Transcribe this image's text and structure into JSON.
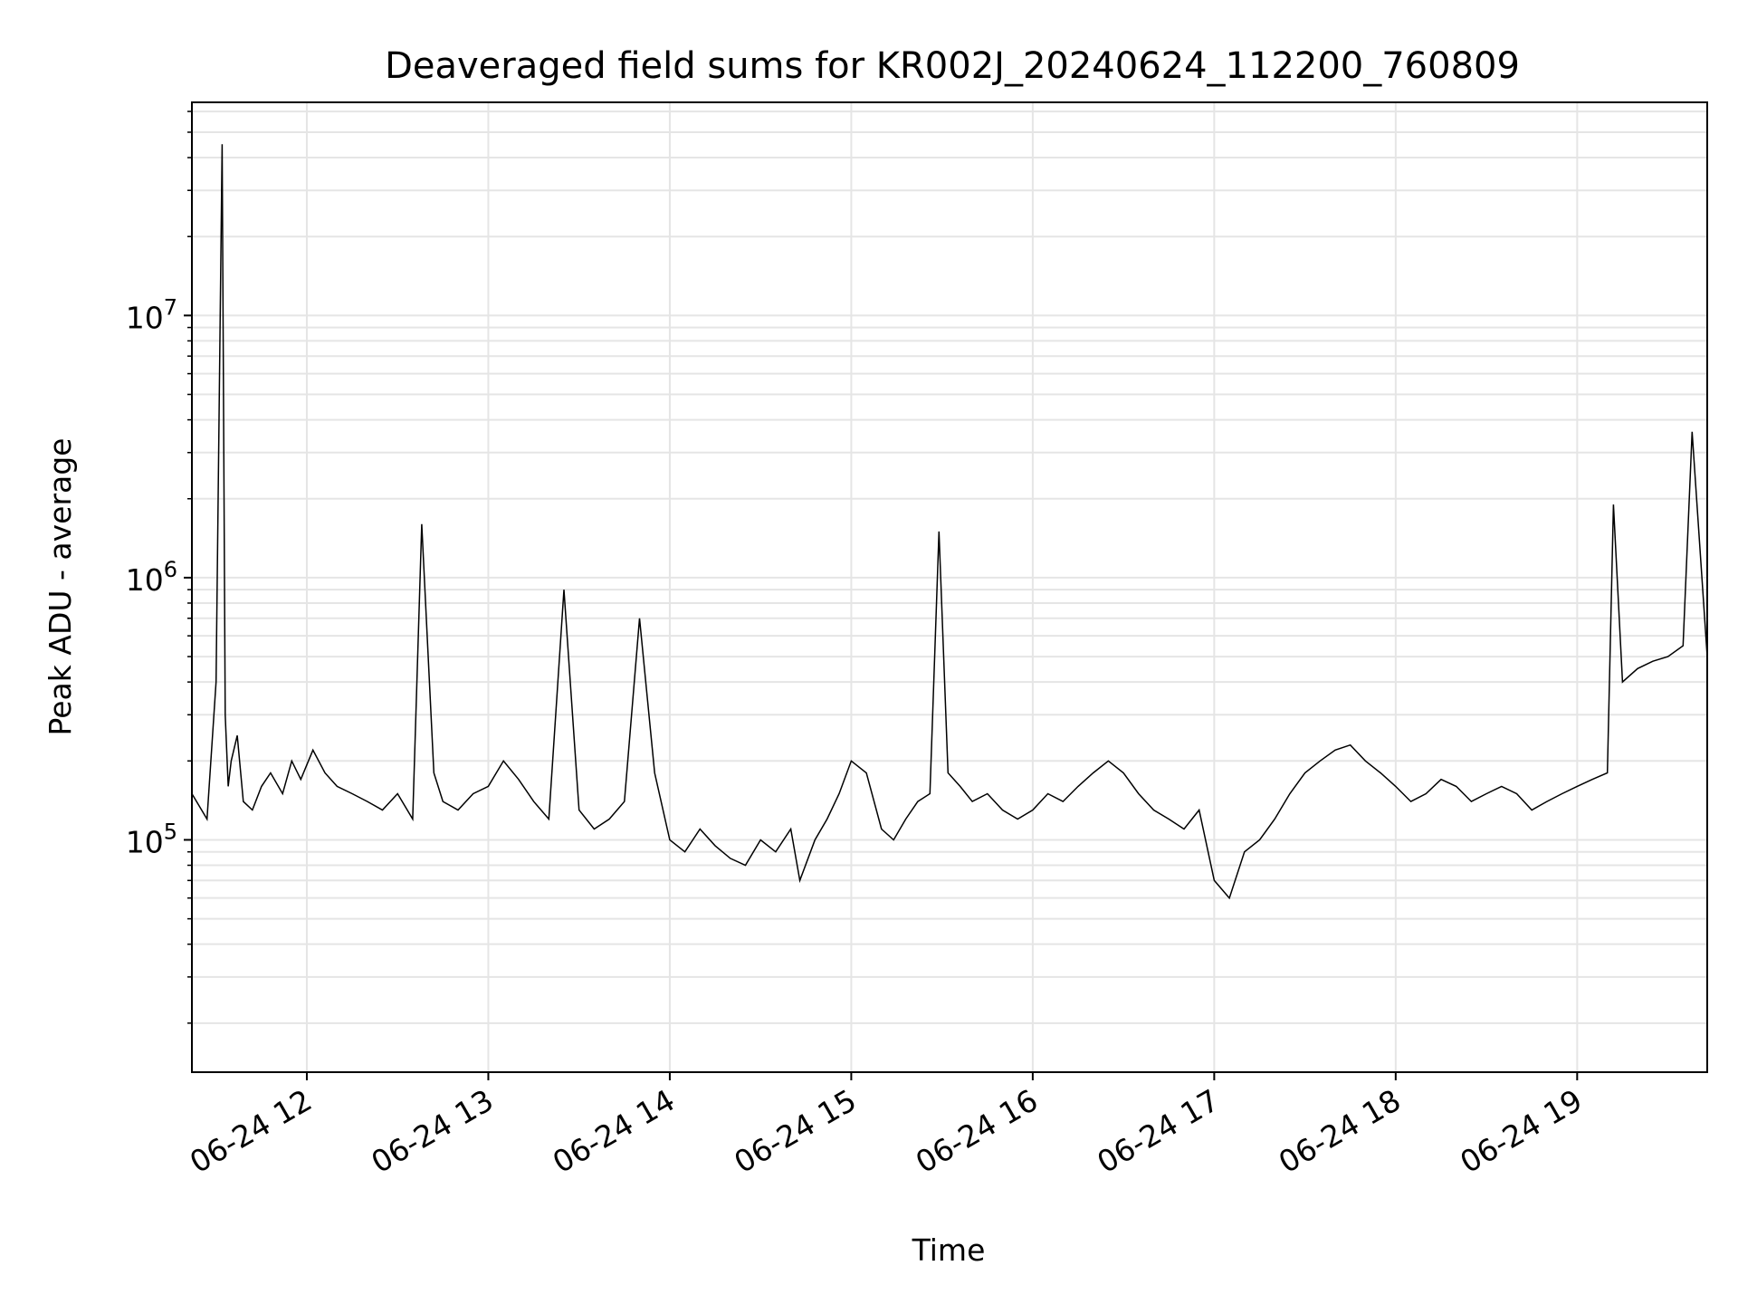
{
  "chart_data": {
    "type": "line",
    "title": "Deaveraged field sums for KR002J_20240624_112200_760809",
    "xlabel": "Time",
    "ylabel": "Peak ADU - average",
    "y_scale": "log",
    "ylim": [
      13000,
      65000000
    ],
    "xlim": [
      "2024-06-24 11:22",
      "2024-06-24 19:43"
    ],
    "x_ticks": [
      {
        "t": "2024-06-24 12:00",
        "label": "06-24 12"
      },
      {
        "t": "2024-06-24 13:00",
        "label": "06-24 13"
      },
      {
        "t": "2024-06-24 14:00",
        "label": "06-24 14"
      },
      {
        "t": "2024-06-24 15:00",
        "label": "06-24 15"
      },
      {
        "t": "2024-06-24 16:00",
        "label": "06-24 16"
      },
      {
        "t": "2024-06-24 17:00",
        "label": "06-24 17"
      },
      {
        "t": "2024-06-24 18:00",
        "label": "06-24 18"
      },
      {
        "t": "2024-06-24 19:00",
        "label": "06-24 19"
      }
    ],
    "y_ticks": [
      {
        "value": 100000,
        "base": "10",
        "exp": "5"
      },
      {
        "value": 1000000,
        "base": "10",
        "exp": "6"
      },
      {
        "value": 10000000,
        "base": "10",
        "exp": "7"
      }
    ],
    "grid": true,
    "line_color": "#000000",
    "grid_color": "#e5e5e5",
    "series": [
      {
        "x": [
          "2024-06-24 11:22",
          "2024-06-24 11:27",
          "2024-06-24 11:30",
          "2024-06-24 11:32",
          "2024-06-24 11:33",
          "2024-06-24 11:34",
          "2024-06-24 11:35",
          "2024-06-24 11:37",
          "2024-06-24 11:39",
          "2024-06-24 11:42",
          "2024-06-24 11:45",
          "2024-06-24 11:48",
          "2024-06-24 11:52",
          "2024-06-24 11:55",
          "2024-06-24 11:58",
          "2024-06-24 12:02",
          "2024-06-24 12:06",
          "2024-06-24 12:10",
          "2024-06-24 12:15",
          "2024-06-24 12:20",
          "2024-06-24 12:25",
          "2024-06-24 12:30",
          "2024-06-24 12:35",
          "2024-06-24 12:38",
          "2024-06-24 12:42",
          "2024-06-24 12:45",
          "2024-06-24 12:50",
          "2024-06-24 12:55",
          "2024-06-24 13:00",
          "2024-06-24 13:05",
          "2024-06-24 13:10",
          "2024-06-24 13:15",
          "2024-06-24 13:20",
          "2024-06-24 13:25",
          "2024-06-24 13:30",
          "2024-06-24 13:35",
          "2024-06-24 13:40",
          "2024-06-24 13:45",
          "2024-06-24 13:50",
          "2024-06-24 13:55",
          "2024-06-24 14:00",
          "2024-06-24 14:05",
          "2024-06-24 14:10",
          "2024-06-24 14:15",
          "2024-06-24 14:20",
          "2024-06-24 14:25",
          "2024-06-24 14:30",
          "2024-06-24 14:35",
          "2024-06-24 14:40",
          "2024-06-24 14:43",
          "2024-06-24 14:48",
          "2024-06-24 14:52",
          "2024-06-24 14:56",
          "2024-06-24 15:00",
          "2024-06-24 15:05",
          "2024-06-24 15:10",
          "2024-06-24 15:14",
          "2024-06-24 15:18",
          "2024-06-24 15:22",
          "2024-06-24 15:26",
          "2024-06-24 15:29",
          "2024-06-24 15:32",
          "2024-06-24 15:36",
          "2024-06-24 15:40",
          "2024-06-24 15:45",
          "2024-06-24 15:50",
          "2024-06-24 15:55",
          "2024-06-24 16:00",
          "2024-06-24 16:05",
          "2024-06-24 16:10",
          "2024-06-24 16:15",
          "2024-06-24 16:20",
          "2024-06-24 16:25",
          "2024-06-24 16:30",
          "2024-06-24 16:35",
          "2024-06-24 16:40",
          "2024-06-24 16:45",
          "2024-06-24 16:50",
          "2024-06-24 16:55",
          "2024-06-24 17:00",
          "2024-06-24 17:05",
          "2024-06-24 17:10",
          "2024-06-24 17:15",
          "2024-06-24 17:20",
          "2024-06-24 17:25",
          "2024-06-24 17:30",
          "2024-06-24 17:35",
          "2024-06-24 17:40",
          "2024-06-24 17:45",
          "2024-06-24 17:50",
          "2024-06-24 17:55",
          "2024-06-24 18:00",
          "2024-06-24 18:05",
          "2024-06-24 18:10",
          "2024-06-24 18:15",
          "2024-06-24 18:20",
          "2024-06-24 18:25",
          "2024-06-24 18:30",
          "2024-06-24 18:35",
          "2024-06-24 18:40",
          "2024-06-24 18:45",
          "2024-06-24 18:50",
          "2024-06-24 18:55",
          "2024-06-24 19:00",
          "2024-06-24 19:05",
          "2024-06-24 19:10",
          "2024-06-24 19:12",
          "2024-06-24 19:15",
          "2024-06-24 19:20",
          "2024-06-24 19:25",
          "2024-06-24 19:30",
          "2024-06-24 19:35",
          "2024-06-24 19:38",
          "2024-06-24 19:43"
        ],
        "y": [
          150000,
          120000,
          400000,
          45000000,
          300000,
          160000,
          200000,
          250000,
          140000,
          130000,
          160000,
          180000,
          150000,
          200000,
          170000,
          220000,
          180000,
          160000,
          150000,
          140000,
          130000,
          150000,
          120000,
          1600000,
          180000,
          140000,
          130000,
          150000,
          160000,
          200000,
          170000,
          140000,
          120000,
          900000,
          130000,
          110000,
          120000,
          140000,
          700000,
          180000,
          100000,
          90000,
          110000,
          95000,
          85000,
          80000,
          100000,
          90000,
          110000,
          70000,
          100000,
          120000,
          150000,
          200000,
          180000,
          110000,
          100000,
          120000,
          140000,
          150000,
          1500000,
          180000,
          160000,
          140000,
          150000,
          130000,
          120000,
          130000,
          150000,
          140000,
          160000,
          180000,
          200000,
          180000,
          150000,
          130000,
          120000,
          110000,
          130000,
          70000,
          60000,
          90000,
          100000,
          120000,
          150000,
          180000,
          200000,
          220000,
          230000,
          200000,
          180000,
          160000,
          140000,
          150000,
          170000,
          160000,
          140000,
          150000,
          160000,
          150000,
          130000,
          140000,
          150000,
          160000,
          170000,
          180000,
          1900000,
          400000,
          450000,
          480000,
          500000,
          550000,
          3600000,
          500000
        ]
      }
    ]
  }
}
